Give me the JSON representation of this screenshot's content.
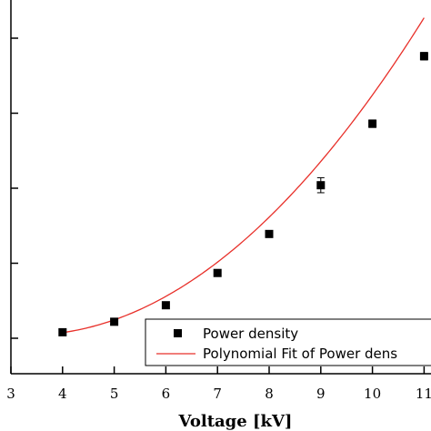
{
  "chart_data": {
    "type": "scatter",
    "xlabel": "Voltage [kV]",
    "ylabel": "",
    "title": "",
    "xlim": [
      3,
      11
    ],
    "x_ticks": [
      "3",
      "4",
      "5",
      "6",
      "7",
      "8",
      "9",
      "10",
      "11"
    ],
    "y_tick_count": 6,
    "grid": false,
    "legend_placement": "bottom-right",
    "series": [
      {
        "name": "Power density",
        "kind": "scatter",
        "marker": "filled-square",
        "color": "#000000",
        "x": [
          4,
          5,
          6,
          7,
          8,
          9,
          10,
          11
        ],
        "y": [
          0.08,
          0.22,
          0.44,
          0.87,
          1.39,
          2.04,
          2.86,
          3.76
        ],
        "error": [
          0.02,
          0.02,
          0.03,
          0.03,
          0.03,
          0.1,
          0.05,
          0.05
        ]
      },
      {
        "name": "Polynomial Fit of Power dens",
        "kind": "line",
        "color": "#e8302a",
        "poly_coeffs": [
          0.8275,
          -0.4745,
          0.0716
        ]
      }
    ]
  }
}
